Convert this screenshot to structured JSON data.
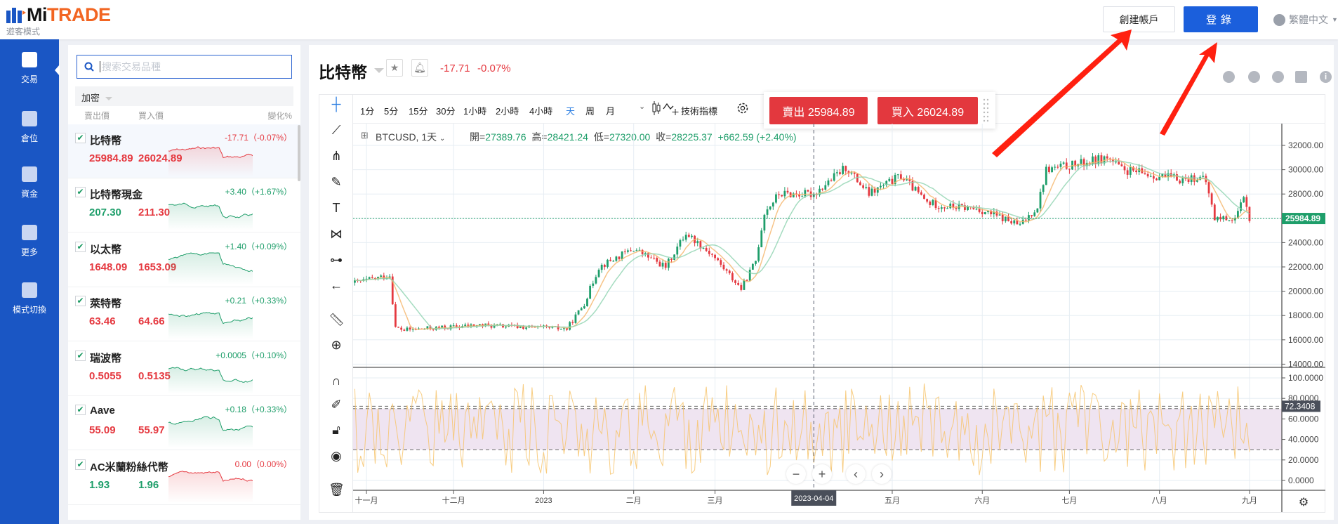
{
  "header": {
    "logo_mi": "Mi",
    "logo_trade": "TRADE",
    "guest_mode": "遊客模式",
    "create_account": "創建帳戶",
    "login": "登錄",
    "language": "繁體中文"
  },
  "nav": [
    {
      "label": "交易",
      "icon": "chart-icon"
    },
    {
      "label": "倉位",
      "icon": "clipboard-icon"
    },
    {
      "label": "資金",
      "icon": "wallet-icon"
    },
    {
      "label": "更多",
      "icon": "grid-icon"
    },
    {
      "label": "模式切換",
      "icon": "switch-icon"
    }
  ],
  "watchlist": {
    "search_placeholder": "搜索交易品種",
    "category": "加密",
    "col_sell": "賣出價",
    "col_buy": "買入價",
    "col_change": "變化%",
    "items": [
      {
        "name": "比特幣",
        "change": "-17.71（-0.07%）",
        "sell": "25984.89",
        "buy": "26024.89",
        "dir": "down",
        "sell_color": "#e53940",
        "buy_color": "#e53940"
      },
      {
        "name": "比特幣現金",
        "change": "+3.40（+1.67%）",
        "sell": "207.30",
        "buy": "211.30",
        "dir": "up",
        "sell_color": "#1e9e6a",
        "buy_color": "#e53940"
      },
      {
        "name": "以太幣",
        "change": "+1.40（+0.09%）",
        "sell": "1648.09",
        "buy": "1653.09",
        "dir": "up",
        "sell_color": "#e53940",
        "buy_color": "#e53940"
      },
      {
        "name": "萊特幣",
        "change": "+0.21（+0.33%）",
        "sell": "63.46",
        "buy": "64.66",
        "dir": "up",
        "sell_color": "#e53940",
        "buy_color": "#e53940"
      },
      {
        "name": "瑞波幣",
        "change": "+0.0005（+0.10%）",
        "sell": "0.5055",
        "buy": "0.5135",
        "dir": "up",
        "sell_color": "#e53940",
        "buy_color": "#e53940"
      },
      {
        "name": "Aave",
        "change": "+0.18（+0.33%）",
        "sell": "55.09",
        "buy": "55.97",
        "dir": "up",
        "sell_color": "#e53940",
        "buy_color": "#e53940"
      },
      {
        "name": "AC米蘭粉絲代幣",
        "change": "0.00（0.00%）",
        "sell": "1.93",
        "buy": "1.96",
        "dir": "flat",
        "sell_color": "#1e9e6a",
        "buy_color": "#1e9e6a"
      }
    ]
  },
  "instrument": {
    "name": "比特幣",
    "change": "-17.71",
    "change_pct": "-0.07%"
  },
  "toolbar": {
    "intervals": [
      "1分",
      "5分",
      "15分",
      "30分",
      "1小時",
      "2小時",
      "4小時",
      "天",
      "周",
      "月"
    ],
    "active": "天",
    "indicators": "技術指標"
  },
  "trade": {
    "sell": "賣出 25984.89",
    "buy": "買入 26024.89"
  },
  "legend": {
    "symbol": "BTCUSD, 1天",
    "open_label": "開=",
    "open": "27389.76",
    "high_label": "高=",
    "high": "28421.24",
    "low_label": "低=",
    "low": "27320.00",
    "close_label": "收=",
    "close": "28225.37",
    "change": "+662.59 (+2.40%)"
  },
  "colors": {
    "up": "#1e9e6a",
    "down": "#e53940",
    "accent": "#1b5fdc",
    "oscillator": "#f7c46c"
  },
  "chart_data": {
    "type": "candlestick",
    "symbol": "BTCUSD",
    "interval": "1天",
    "y_ticks": [
      "32000.00",
      "30000.00",
      "28000.00",
      "24000.00",
      "22000.00",
      "20000.00",
      "18000.00",
      "16000.00",
      "14000.00"
    ],
    "ylim": [
      14000,
      33000
    ],
    "current_price": 25984.89,
    "current_price_label": "25984.89",
    "x_labels": [
      {
        "label": "十一月",
        "day": 0
      },
      {
        "label": "十二月",
        "day": 30
      },
      {
        "label": "2023",
        "day": 61
      },
      {
        "label": "二月",
        "day": 92
      },
      {
        "label": "三月",
        "day": 120
      },
      {
        "label": "五月",
        "day": 181
      },
      {
        "label": "六月",
        "day": 212
      },
      {
        "label": "七月",
        "day": 242
      },
      {
        "label": "八月",
        "day": 273
      },
      {
        "label": "九月",
        "day": 304
      }
    ],
    "crosshair": {
      "label": "2023-04-04",
      "day": 154
    },
    "price_path": [
      [
        -4,
        20700
      ],
      [
        8,
        21300
      ],
      [
        10,
        17000
      ],
      [
        13,
        16800
      ],
      [
        39,
        17200
      ],
      [
        69,
        16900
      ],
      [
        75,
        19000
      ],
      [
        80,
        22000
      ],
      [
        92,
        23500
      ],
      [
        103,
        22000
      ],
      [
        110,
        24800
      ],
      [
        119,
        23000
      ],
      [
        129,
        20200
      ],
      [
        134,
        22500
      ],
      [
        137,
        26500
      ],
      [
        142,
        28000
      ],
      [
        154,
        28000
      ],
      [
        165,
        30200
      ],
      [
        173,
        28000
      ],
      [
        184,
        29500
      ],
      [
        193,
        27300
      ],
      [
        199,
        27000
      ],
      [
        210,
        26800
      ],
      [
        219,
        26000
      ],
      [
        225,
        25400
      ],
      [
        231,
        27000
      ],
      [
        234,
        30000
      ],
      [
        246,
        30500
      ],
      [
        255,
        31000
      ],
      [
        260,
        30000
      ],
      [
        272,
        29500
      ],
      [
        281,
        29200
      ],
      [
        286,
        29400
      ],
      [
        289,
        29000
      ],
      [
        292,
        26000
      ],
      [
        299,
        26000
      ],
      [
        302,
        27500
      ],
      [
        304,
        26000
      ]
    ],
    "oscillator": {
      "y_ticks": [
        "100.0000",
        "80.0000",
        "60.0000",
        "40.0000",
        "20.0000",
        "0.0000"
      ],
      "ylim": [
        0,
        100
      ],
      "upper_band": 70,
      "lower_band": 30,
      "current": 72.3408,
      "current_label": "72.3408"
    }
  }
}
